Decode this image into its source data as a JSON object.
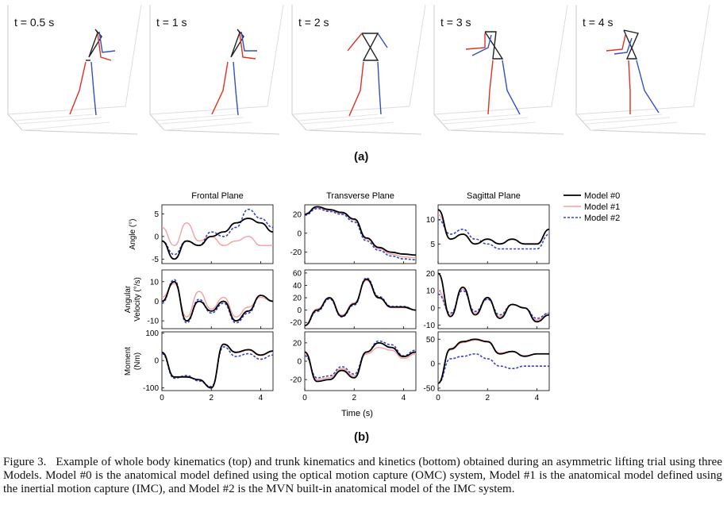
{
  "panel_a": {
    "label": "(a)",
    "frames": [
      {
        "label": "t = 0.5 s"
      },
      {
        "label": "t = 1 s"
      },
      {
        "label": "t = 2 s"
      },
      {
        "label": "t = 3 s"
      },
      {
        "label": "t = 4 s"
      }
    ]
  },
  "panel_b": {
    "label": "(b)",
    "column_titles": [
      "Frontal Plane",
      "Transverse Plane",
      "Sagittal Plane"
    ],
    "row_labels": [
      [
        "Angle (°)"
      ],
      [
        "Angular",
        "Velocity (°/s)"
      ],
      [
        "Moment",
        "(Nm)"
      ]
    ],
    "xlabel": "Time (s)",
    "legend": [
      "Model #0",
      "Model #1",
      "Model #2"
    ]
  },
  "colors": {
    "model0": "#000000",
    "model1": "#f5a0a0",
    "model2": "#3344cc",
    "right_side": "#e03020",
    "left_side": "#3050c0"
  },
  "chart_data": [
    {
      "type": "line",
      "title": "Frontal Plane",
      "ylabel": "Angle (°)",
      "x": [
        0,
        0.5,
        1,
        1.5,
        2,
        2.5,
        3,
        3.5,
        4,
        4.5
      ],
      "ylim": [
        -6,
        7
      ],
      "yticks": [
        -5,
        0,
        5
      ],
      "xticks": [
        0,
        2,
        4
      ],
      "series": [
        {
          "name": "Model #0",
          "values": [
            -1,
            -5,
            -1,
            -2,
            0,
            1,
            3,
            4,
            3,
            1
          ]
        },
        {
          "name": "Model #1",
          "values": [
            2,
            -2,
            3,
            -1,
            0,
            -2,
            -1,
            0,
            -2,
            -2
          ]
        },
        {
          "name": "Model #2",
          "values": [
            -1,
            -4,
            -1,
            -2,
            1,
            0,
            2,
            6,
            4,
            2
          ]
        }
      ]
    },
    {
      "type": "line",
      "title": "Transverse Plane",
      "ylabel": "",
      "x": [
        0,
        0.5,
        1,
        1.5,
        2,
        2.5,
        3,
        3.5,
        4,
        4.5
      ],
      "ylim": [
        -32,
        30
      ],
      "yticks": [
        -20,
        0,
        20
      ],
      "xticks": [
        0,
        2,
        4
      ],
      "series": [
        {
          "name": "Model #0",
          "values": [
            20,
            28,
            25,
            22,
            15,
            -5,
            -15,
            -20,
            -22,
            -23
          ]
        },
        {
          "name": "Model #1",
          "values": [
            21,
            27,
            24,
            21,
            14,
            -6,
            -16,
            -22,
            -25,
            -26
          ]
        },
        {
          "name": "Model #2",
          "values": [
            19,
            26,
            23,
            20,
            12,
            -8,
            -18,
            -24,
            -27,
            -28
          ]
        }
      ]
    },
    {
      "type": "line",
      "title": "Sagittal Plane",
      "ylabel": "",
      "x": [
        0,
        0.5,
        1,
        1.5,
        2,
        2.5,
        3,
        3.5,
        4,
        4.5
      ],
      "ylim": [
        1,
        13
      ],
      "yticks": [
        5,
        10
      ],
      "xticks": [
        0,
        2,
        4
      ],
      "series": [
        {
          "name": "Model #0",
          "values": [
            12,
            6,
            7,
            5,
            6,
            5,
            6,
            5,
            5,
            8
          ]
        },
        {
          "name": "Model #1",
          "values": [
            11,
            6,
            7,
            5,
            6,
            5,
            6,
            5,
            5,
            8
          ]
        },
        {
          "name": "Model #2",
          "values": [
            10,
            7,
            8,
            6,
            5,
            4,
            4,
            4,
            4,
            7
          ]
        }
      ]
    },
    {
      "type": "line",
      "title": "",
      "ylabel": "Angular Velocity (°/s)",
      "x": [
        0,
        0.5,
        1,
        1.5,
        2,
        2.5,
        3,
        3.5,
        4,
        4.5
      ],
      "ylim": [
        -14,
        16
      ],
      "yticks": [
        -10,
        0,
        10
      ],
      "xticks": [
        0,
        2,
        4
      ],
      "series": [
        {
          "name": "Model #0",
          "values": [
            0,
            10,
            -10,
            0,
            -5,
            0,
            -10,
            -5,
            3,
            0
          ]
        },
        {
          "name": "Model #1",
          "values": [
            2,
            9,
            -8,
            5,
            -4,
            2,
            -8,
            -3,
            2,
            0
          ]
        },
        {
          "name": "Model #2",
          "values": [
            -1,
            11,
            -11,
            1,
            -6,
            -1,
            -11,
            -6,
            3,
            0
          ]
        }
      ]
    },
    {
      "type": "line",
      "title": "",
      "ylabel": "",
      "x": [
        0,
        0.5,
        1,
        1.5,
        2,
        2.5,
        3,
        3.5,
        4,
        4.5
      ],
      "ylim": [
        -30,
        65
      ],
      "yticks": [
        -20,
        0,
        20,
        40,
        60
      ],
      "xticks": [
        0,
        2,
        4
      ],
      "series": [
        {
          "name": "Model #0",
          "values": [
            -25,
            0,
            20,
            -10,
            10,
            50,
            20,
            5,
            5,
            0
          ]
        },
        {
          "name": "Model #1",
          "values": [
            -24,
            2,
            19,
            -8,
            12,
            48,
            19,
            4,
            4,
            0
          ]
        },
        {
          "name": "Model #2",
          "values": [
            -25,
            -2,
            18,
            -11,
            8,
            52,
            22,
            6,
            6,
            0
          ]
        }
      ]
    },
    {
      "type": "line",
      "title": "",
      "ylabel": "",
      "x": [
        0,
        0.5,
        1,
        1.5,
        2,
        2.5,
        3,
        3.5,
        4,
        4.5
      ],
      "ylim": [
        -12,
        22
      ],
      "yticks": [
        -10,
        0,
        10,
        20
      ],
      "xticks": [
        0,
        2,
        4
      ],
      "series": [
        {
          "name": "Model #0",
          "values": [
            20,
            -5,
            12,
            -4,
            6,
            -6,
            2,
            0,
            -8,
            -4
          ]
        },
        {
          "name": "Model #1",
          "values": [
            10,
            -4,
            11,
            -3,
            5,
            -5,
            2,
            0,
            -7,
            -3
          ]
        },
        {
          "name": "Model #2",
          "values": [
            8,
            -3,
            10,
            -2,
            5,
            -4,
            2,
            0,
            -6,
            -3
          ]
        }
      ]
    },
    {
      "type": "line",
      "title": "",
      "ylabel": "Moment (Nm)",
      "x": [
        0,
        0.5,
        1,
        1.5,
        2,
        2.5,
        3,
        3.5,
        4,
        4.5
      ],
      "ylim": [
        -110,
        105
      ],
      "yticks": [
        -100,
        0,
        100
      ],
      "xticks": [
        0,
        2,
        4
      ],
      "series": [
        {
          "name": "Model #0",
          "values": [
            30,
            -60,
            -60,
            -70,
            -100,
            60,
            30,
            40,
            20,
            35
          ]
        },
        {
          "name": "Model #1",
          "values": [
            28,
            -62,
            -58,
            -72,
            -98,
            58,
            28,
            38,
            18,
            33
          ]
        },
        {
          "name": "Model #2",
          "values": [
            25,
            -65,
            -55,
            -75,
            -95,
            50,
            15,
            25,
            5,
            20
          ]
        }
      ]
    },
    {
      "type": "line",
      "title": "",
      "ylabel": "",
      "xlabel": "Time (s)",
      "x": [
        0,
        0.5,
        1,
        1.5,
        2,
        2.5,
        3,
        3.5,
        4,
        4.5
      ],
      "ylim": [
        -32,
        32
      ],
      "yticks": [
        -20,
        0,
        20
      ],
      "xticks": [
        0,
        2,
        4
      ],
      "series": [
        {
          "name": "Model #0",
          "values": [
            10,
            -22,
            -20,
            -10,
            -18,
            10,
            20,
            15,
            5,
            10
          ]
        },
        {
          "name": "Model #1",
          "values": [
            8,
            -20,
            -18,
            -8,
            -16,
            8,
            15,
            12,
            3,
            8
          ]
        },
        {
          "name": "Model #2",
          "values": [
            6,
            -18,
            -16,
            -6,
            -14,
            10,
            22,
            18,
            6,
            12
          ]
        }
      ]
    },
    {
      "type": "line",
      "title": "",
      "ylabel": "",
      "x": [
        0,
        0.5,
        1,
        1.5,
        2,
        2.5,
        3,
        3.5,
        4,
        4.5
      ],
      "ylim": [
        -55,
        65
      ],
      "yticks": [
        -50,
        0,
        50
      ],
      "xticks": [
        0,
        2,
        4
      ],
      "series": [
        {
          "name": "Model #0",
          "values": [
            -40,
            30,
            45,
            50,
            45,
            20,
            25,
            15,
            20,
            20
          ]
        },
        {
          "name": "Model #1",
          "values": [
            -38,
            28,
            43,
            48,
            44,
            22,
            25,
            16,
            20,
            20
          ]
        },
        {
          "name": "Model #2",
          "values": [
            -40,
            10,
            15,
            20,
            10,
            -5,
            -10,
            -5,
            -5,
            -5
          ]
        }
      ]
    }
  ],
  "caption": {
    "figure": "Figure 3.",
    "text": "Example of whole body kinematics (top) and trunk kinematics and kinetics (bottom) obtained during an asymmetric lifting trial using three Models. Model #0 is the anatomical model defined using the optical motion capture (OMC) system, Model #1 is the anatomical model defined using the inertial motion capture (IMC), and Model #2 is the MVN built-in anatomical model of the IMC system."
  }
}
